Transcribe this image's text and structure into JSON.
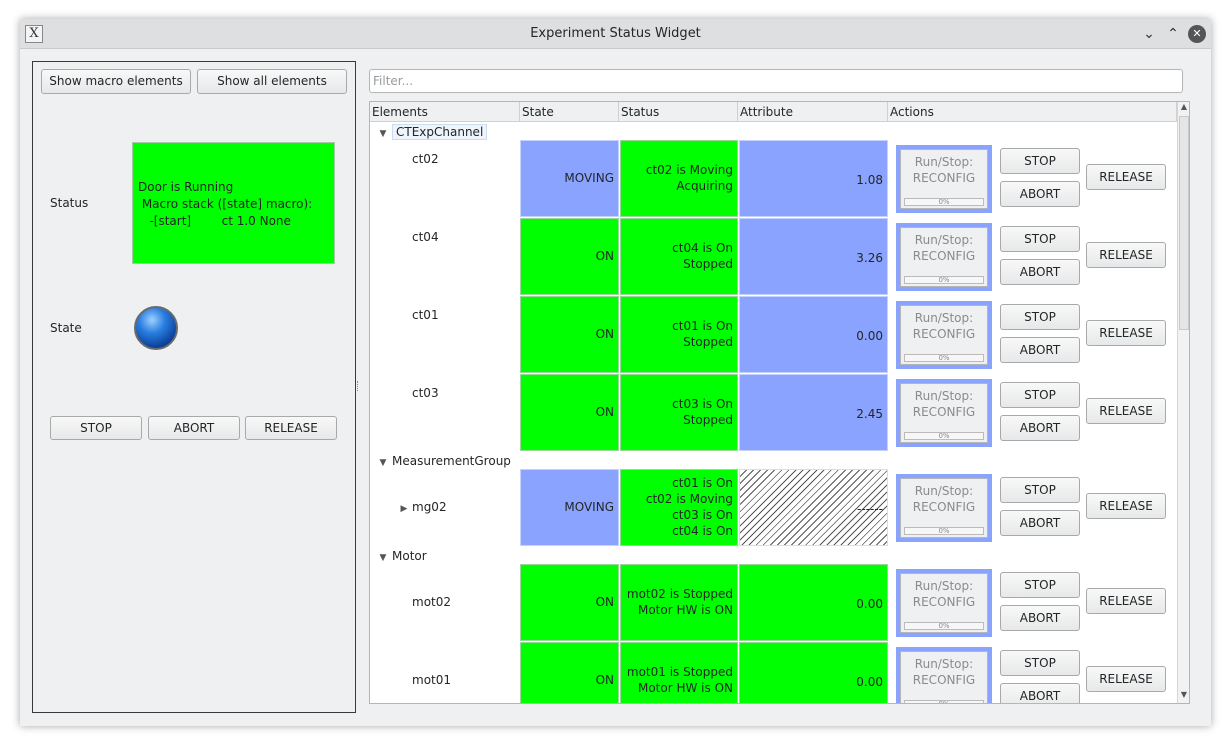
{
  "window": {
    "title": "Experiment Status Widget",
    "app_icon": "X"
  },
  "left": {
    "show_macro_label": "Show macro elements",
    "show_all_label": "Show all elements",
    "status_label": "Status",
    "status_text": "Door is Running\n Macro stack ([state] macro):\n   -[start]        ct 1.0 None",
    "state_label": "State",
    "led_color": "#1e6fd6",
    "stop_label": "STOP",
    "abort_label": "ABORT",
    "release_label": "RELEASE"
  },
  "filter": {
    "placeholder": "Filter..."
  },
  "columns": [
    "Elements",
    "State",
    "Status",
    "Attribute",
    "Actions"
  ],
  "groups": [
    "CTExpChannel",
    "MeasurementGroup",
    "Motor"
  ],
  "rows": [
    {
      "name": "ct02",
      "state": "MOVING",
      "status1": "ct02 is Moving",
      "status2": "Acquiring",
      "status3": "",
      "status4": "",
      "attribute": "1.08"
    },
    {
      "name": "ct04",
      "state": "ON",
      "status1": "ct04 is On",
      "status2": "Stopped",
      "status3": "",
      "status4": "",
      "attribute": "3.26"
    },
    {
      "name": "ct01",
      "state": "ON",
      "status1": "ct01 is On",
      "status2": "Stopped",
      "status3": "",
      "status4": "",
      "attribute": "0.00"
    },
    {
      "name": "ct03",
      "state": "ON",
      "status1": "ct03 is On",
      "status2": "Stopped",
      "status3": "",
      "status4": "",
      "attribute": "2.45"
    },
    {
      "name": "mg02",
      "state": "MOVING",
      "status1": "ct01 is On",
      "status2": "ct02 is Moving",
      "status3": "ct03 is On",
      "status4": "ct04 is On",
      "attribute": "------"
    },
    {
      "name": "mot02",
      "state": "ON",
      "status1": "mot02 is Stopped",
      "status2": "Motor HW is ON",
      "status3": "",
      "status4": "",
      "attribute": "0.00"
    },
    {
      "name": "mot01",
      "state": "ON",
      "status1": "mot01 is Stopped",
      "status2": "Motor HW is ON",
      "status3": "",
      "status4": "",
      "attribute": "0.00"
    }
  ],
  "actions": {
    "run_stop_1": "Run/Stop:",
    "run_stop_2": "RECONFIG",
    "progress": "0%",
    "stop": "STOP",
    "abort": "ABORT",
    "release": "RELEASE"
  },
  "colors": {
    "moving": "#8aa3ff",
    "on": "#00ff00"
  }
}
